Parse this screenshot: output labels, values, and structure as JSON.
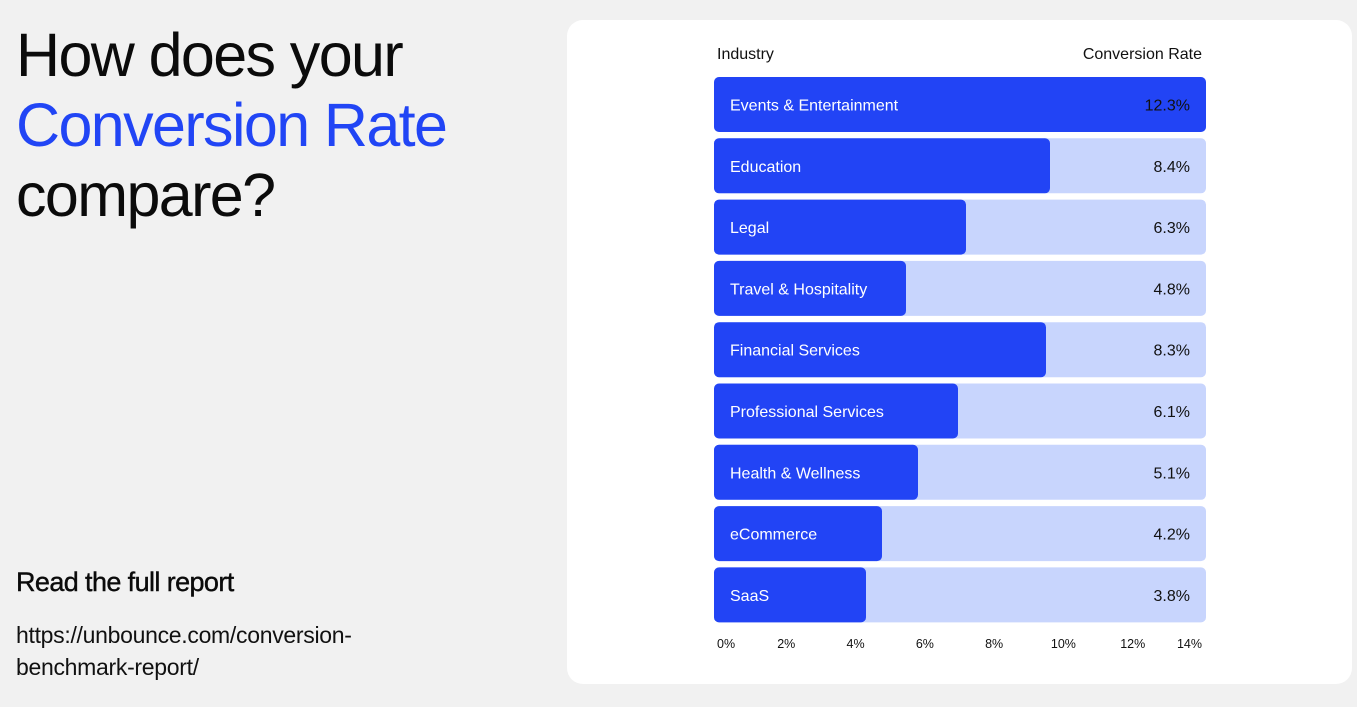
{
  "headline": {
    "line1": "How does your",
    "line2": "Conversion Rate",
    "line3": "compare?"
  },
  "report": {
    "heading": "Read the full report",
    "url_line1": "https://unbounce.com/conversion-",
    "url_line2": "benchmark-report/"
  },
  "colors": {
    "accent": "#2145f5",
    "bar_fill": "#2244f5",
    "bar_track": "#c8d5fd",
    "background": "#f1f1f1",
    "card": "#ffffff"
  },
  "chart_data": {
    "type": "bar",
    "orientation": "horizontal",
    "column_header_left": "Industry",
    "column_header_right": "Conversion Rate",
    "categories": [
      "Events & Entertainment",
      "Education",
      "Legal",
      "Travel & Hospitality",
      "Financial Services",
      "Professional Services",
      "Health & Wellness",
      "eCommerce",
      "SaaS"
    ],
    "values": [
      12.3,
      8.4,
      6.3,
      4.8,
      8.3,
      6.1,
      5.1,
      4.2,
      3.8
    ],
    "value_labels": [
      "12.3%",
      "8.4%",
      "6.3%",
      "4.8%",
      "8.3%",
      "6.1%",
      "5.1%",
      "4.2%",
      "3.8%"
    ],
    "xlim": [
      0,
      14
    ],
    "ticks": [
      0,
      2,
      4,
      6,
      8,
      10,
      12,
      14
    ],
    "tick_labels": [
      "0%",
      "2%",
      "4%",
      "6%",
      "8%",
      "10%",
      "12%",
      "14%"
    ],
    "grid": false,
    "legend": false
  }
}
